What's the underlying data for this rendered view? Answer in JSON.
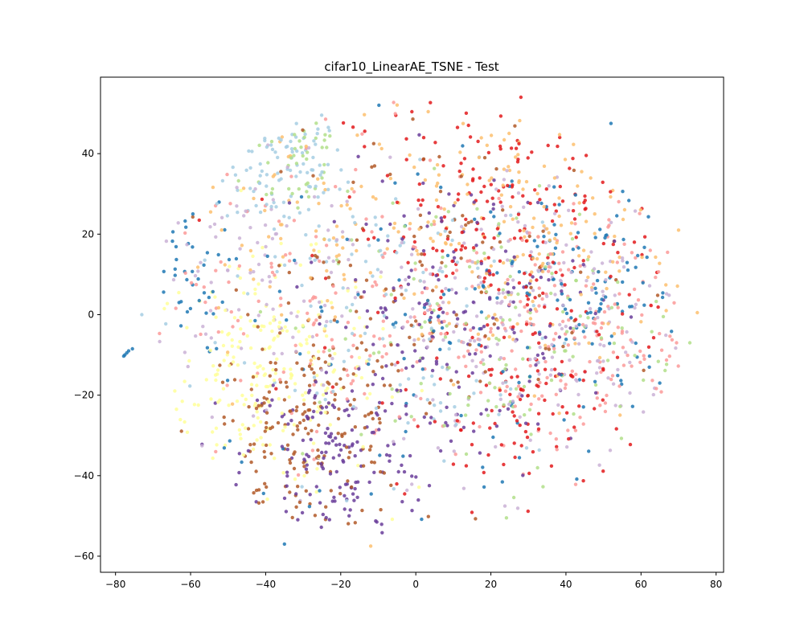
{
  "chart_data": {
    "type": "scatter",
    "title": "cifar10_LinearAE_TSNE - Test",
    "xlabel": "",
    "ylabel": "",
    "xlim": [
      -84,
      82
    ],
    "ylim": [
      -64,
      59
    ],
    "x_ticks": [
      "−80",
      "−60",
      "−40",
      "−20",
      "0",
      "20",
      "40",
      "60",
      "80"
    ],
    "y_ticks": [
      "−60",
      "−40",
      "−20",
      "0",
      "20",
      "40"
    ],
    "x_tick_values": [
      -80,
      -60,
      -40,
      -20,
      0,
      20,
      40,
      60,
      80
    ],
    "y_tick_values": [
      -60,
      -40,
      -20,
      0,
      20,
      40
    ],
    "grid": false,
    "legend": "none",
    "colormap": "Paired",
    "palette": [
      "#1f78b4",
      "#a6cee3",
      "#b2df8a",
      "#fb9a99",
      "#e31a1c",
      "#fdbf6f",
      "#6a3d9a",
      "#cab2d6",
      "#ffff99",
      "#b15928"
    ],
    "clusters": [
      {
        "color": 1,
        "cx": -35,
        "cy": 38,
        "sx": 8,
        "sy": 9,
        "n": 90
      },
      {
        "color": 2,
        "cx": -32,
        "cy": 40,
        "sx": 7,
        "sy": 8,
        "n": 40
      },
      {
        "color": 8,
        "cx": -40,
        "cy": -15,
        "sx": 15,
        "sy": 14,
        "n": 220
      },
      {
        "color": 9,
        "cx": -30,
        "cy": -30,
        "sx": 14,
        "sy": 12,
        "n": 170
      },
      {
        "color": 6,
        "cx": -22,
        "cy": -35,
        "sx": 12,
        "sy": 12,
        "n": 150
      },
      {
        "color": 0,
        "cx": -62,
        "cy": 10,
        "sx": 6,
        "sy": 10,
        "n": 40
      },
      {
        "color": 0,
        "cx": 45,
        "cy": 5,
        "sx": 12,
        "sy": 14,
        "n": 100
      },
      {
        "color": 4,
        "cx": 25,
        "cy": 20,
        "sx": 22,
        "sy": 22,
        "n": 240
      },
      {
        "color": 4,
        "cx": 30,
        "cy": -25,
        "sx": 10,
        "sy": 10,
        "n": 60
      },
      {
        "color": 5,
        "cx": 30,
        "cy": 20,
        "sx": 22,
        "sy": 18,
        "n": 180
      },
      {
        "color": 3,
        "cx": 40,
        "cy": -5,
        "sx": 20,
        "sy": 16,
        "n": 180
      },
      {
        "color": 7,
        "cx": 35,
        "cy": 0,
        "sx": 22,
        "sy": 20,
        "n": 200
      },
      {
        "color": 6,
        "cx": 10,
        "cy": 0,
        "sx": 18,
        "sy": 18,
        "n": 180
      },
      {
        "color": 2,
        "cx": 20,
        "cy": -5,
        "sx": 25,
        "sy": 18,
        "n": 140
      },
      {
        "color": 1,
        "cx": -10,
        "cy": 0,
        "sx": 25,
        "sy": 20,
        "n": 120
      },
      {
        "color": 3,
        "cx": -20,
        "cy": 5,
        "sx": 22,
        "sy": 20,
        "n": 140
      },
      {
        "color": 9,
        "cx": 0,
        "cy": 10,
        "sx": 25,
        "sy": 20,
        "n": 120
      },
      {
        "color": 7,
        "cx": -40,
        "cy": 10,
        "sx": 15,
        "sy": 18,
        "n": 100
      },
      {
        "color": 5,
        "cx": -25,
        "cy": 20,
        "sx": 18,
        "sy": 18,
        "n": 80
      },
      {
        "color": 0,
        "cx": 10,
        "cy": -10,
        "sx": 30,
        "sy": 25,
        "n": 90
      }
    ],
    "extra_points": [
      {
        "x": -77.5,
        "y": -10,
        "color": 0
      },
      {
        "x": -77,
        "y": -9.5,
        "color": 0
      },
      {
        "x": -76.5,
        "y": -9,
        "color": 0
      },
      {
        "x": -75.5,
        "y": -8.5,
        "color": 0
      },
      {
        "x": -77.8,
        "y": -10.3,
        "color": 0
      },
      {
        "x": -73,
        "y": 0,
        "color": 1
      },
      {
        "x": 75,
        "y": 0.5,
        "color": 5
      },
      {
        "x": 28,
        "y": 54,
        "color": 4
      },
      {
        "x": -35,
        "y": -57,
        "color": 0
      },
      {
        "x": -12,
        "y": -57.5,
        "color": 5
      },
      {
        "x": 65,
        "y": -17,
        "color": 0
      },
      {
        "x": 52,
        "y": 47.5,
        "color": 0
      },
      {
        "x": 70,
        "y": 21,
        "color": 5
      },
      {
        "x": 73,
        "y": -7,
        "color": 2
      }
    ]
  }
}
